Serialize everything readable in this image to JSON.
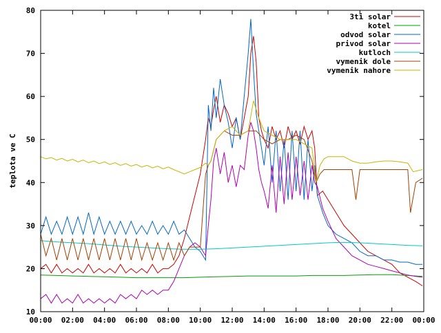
{
  "chart_data": {
    "type": "line",
    "title": "",
    "xlabel": "",
    "ylabel": "teplota ve C",
    "xlim": [
      "00:00",
      "24:00"
    ],
    "ylim": [
      10,
      80
    ],
    "x_ticks": [
      "00:00",
      "02:00",
      "04:00",
      "06:00",
      "08:00",
      "10:00",
      "12:00",
      "14:00",
      "16:00",
      "18:00",
      "20:00",
      "22:00",
      "00:00"
    ],
    "y_ticks": [
      10,
      20,
      30,
      40,
      50,
      60,
      70,
      80
    ],
    "grid": false,
    "legend_position": "top-right",
    "series": [
      {
        "name": "3ti solar",
        "color": "#cc0000",
        "x": [
          "00:00",
          "00:20",
          "00:40",
          "01:00",
          "01:20",
          "01:40",
          "02:00",
          "02:20",
          "02:40",
          "03:00",
          "03:20",
          "03:40",
          "04:00",
          "04:20",
          "04:40",
          "05:00",
          "05:20",
          "05:40",
          "06:00",
          "06:20",
          "06:40",
          "07:00",
          "07:20",
          "07:40",
          "08:00",
          "08:20",
          "08:40",
          "09:00",
          "09:20",
          "09:40",
          "10:00",
          "10:20",
          "10:30",
          "10:40",
          "10:50",
          "11:00",
          "11:15",
          "11:30",
          "11:45",
          "12:00",
          "12:15",
          "12:30",
          "12:45",
          "13:00",
          "13:10",
          "13:20",
          "13:30",
          "13:40",
          "13:50",
          "14:00",
          "14:15",
          "14:30",
          "14:45",
          "15:00",
          "15:15",
          "15:30",
          "15:45",
          "16:00",
          "16:15",
          "16:30",
          "16:45",
          "17:00",
          "17:10",
          "17:20",
          "17:40",
          "18:00",
          "18:30",
          "19:00",
          "19:30",
          "20:00",
          "20:30",
          "21:00",
          "21:30",
          "22:00",
          "22:30",
          "23:00",
          "23:30",
          "23:55"
        ],
        "values": [
          20,
          21,
          19,
          21,
          19,
          20,
          19,
          20,
          19,
          21,
          19,
          20,
          19,
          20,
          19,
          21,
          19,
          20,
          19,
          20,
          19,
          21,
          19,
          20,
          20,
          21,
          23,
          27,
          32,
          37,
          42,
          50,
          55,
          53,
          57,
          60,
          54,
          58,
          56,
          53,
          55,
          50,
          55,
          60,
          70,
          74,
          68,
          55,
          52,
          50,
          48,
          53,
          50,
          52,
          48,
          53,
          50,
          52,
          49,
          53,
          50,
          52,
          48,
          37,
          38,
          36,
          33,
          30,
          28,
          26,
          24,
          23,
          22,
          21,
          19,
          18,
          17,
          16
        ]
      },
      {
        "name": "kotel",
        "color": "#00a000",
        "x": [
          "00:00",
          "01:00",
          "02:00",
          "03:00",
          "04:00",
          "05:00",
          "06:00",
          "07:00",
          "08:00",
          "09:00",
          "10:00",
          "11:00",
          "12:00",
          "13:00",
          "14:00",
          "15:00",
          "16:00",
          "17:00",
          "18:00",
          "19:00",
          "20:00",
          "21:00",
          "22:00",
          "23:00",
          "23:55"
        ],
        "values": [
          18.5,
          18.4,
          18.3,
          18.2,
          18.1,
          18.0,
          17.9,
          17.9,
          17.9,
          17.9,
          18.0,
          18.1,
          18.2,
          18.3,
          18.3,
          18.3,
          18.3,
          18.4,
          18.4,
          18.4,
          18.5,
          18.6,
          18.6,
          18.4,
          18.2
        ]
      },
      {
        "name": "odvod solar",
        "color": "#0066cc",
        "x": [
          "00:00",
          "00:20",
          "00:40",
          "01:00",
          "01:20",
          "01:40",
          "02:00",
          "02:20",
          "02:40",
          "03:00",
          "03:20",
          "03:40",
          "04:00",
          "04:20",
          "04:40",
          "05:00",
          "05:20",
          "05:40",
          "06:00",
          "06:20",
          "06:40",
          "07:00",
          "07:20",
          "07:40",
          "08:00",
          "08:20",
          "08:40",
          "09:00",
          "09:20",
          "09:40",
          "10:00",
          "10:20",
          "10:30",
          "10:40",
          "10:50",
          "11:00",
          "11:15",
          "11:30",
          "11:45",
          "12:00",
          "12:15",
          "12:30",
          "12:45",
          "13:00",
          "13:10",
          "13:20",
          "13:30",
          "13:40",
          "13:50",
          "14:00",
          "14:15",
          "14:30",
          "14:45",
          "15:00",
          "15:15",
          "15:30",
          "15:45",
          "16:00",
          "16:15",
          "16:30",
          "16:45",
          "17:00",
          "17:10",
          "17:20",
          "17:40",
          "18:00",
          "18:30",
          "19:00",
          "19:30",
          "20:00",
          "20:30",
          "21:00",
          "21:30",
          "22:00",
          "22:30",
          "23:00",
          "23:30",
          "23:55"
        ],
        "values": [
          28,
          32,
          28,
          31,
          28,
          32,
          28,
          32,
          28,
          33,
          28,
          32,
          28,
          31,
          28,
          31,
          28,
          31,
          28,
          30,
          28,
          31,
          28,
          30,
          28,
          31,
          28,
          29,
          27,
          25,
          24,
          22,
          58,
          52,
          62,
          55,
          64,
          58,
          54,
          48,
          55,
          50,
          60,
          70,
          78,
          66,
          56,
          52,
          48,
          44,
          53,
          40,
          52,
          38,
          50,
          36,
          52,
          38,
          52,
          36,
          50,
          38,
          44,
          37,
          33,
          30,
          28,
          27,
          26,
          24,
          23,
          23,
          22,
          22,
          21.5,
          21.5,
          21,
          21
        ]
      },
      {
        "name": "privod solar",
        "color": "#b000b0",
        "x": [
          "00:00",
          "00:20",
          "00:40",
          "01:00",
          "01:20",
          "01:40",
          "02:00",
          "02:20",
          "02:40",
          "03:00",
          "03:20",
          "03:40",
          "04:00",
          "04:20",
          "04:40",
          "05:00",
          "05:20",
          "05:40",
          "06:00",
          "06:20",
          "06:40",
          "07:00",
          "07:20",
          "07:40",
          "08:00",
          "08:20",
          "08:40",
          "09:00",
          "09:20",
          "09:40",
          "10:00",
          "10:20",
          "10:30",
          "10:40",
          "10:50",
          "11:00",
          "11:15",
          "11:30",
          "11:45",
          "12:00",
          "12:15",
          "12:30",
          "12:45",
          "13:00",
          "13:10",
          "13:20",
          "13:30",
          "13:40",
          "13:50",
          "14:00",
          "14:15",
          "14:30",
          "14:45",
          "15:00",
          "15:15",
          "15:30",
          "15:45",
          "16:00",
          "16:15",
          "16:30",
          "16:45",
          "17:00",
          "17:10",
          "17:20",
          "17:40",
          "18:00",
          "18:30",
          "19:00",
          "19:30",
          "20:00",
          "20:30",
          "21:00",
          "21:30",
          "22:00",
          "22:30",
          "23:00",
          "23:30",
          "23:55"
        ],
        "values": [
          13,
          14,
          12,
          14,
          12,
          13,
          12,
          14,
          12,
          13,
          12,
          13,
          12,
          13,
          12,
          14,
          13,
          14,
          13,
          15,
          14,
          15,
          14,
          15,
          15,
          17,
          20,
          23,
          25,
          26,
          25,
          23,
          30,
          36,
          45,
          48,
          42,
          47,
          40,
          44,
          39,
          44,
          43,
          51,
          54,
          52,
          48,
          43,
          40,
          38,
          34,
          44,
          33,
          46,
          35,
          47,
          36,
          46,
          37,
          45,
          36,
          44,
          40,
          39,
          34,
          31,
          27,
          25,
          23,
          22,
          21,
          20.5,
          20,
          19.5,
          19,
          18.5,
          18.2,
          18
        ]
      },
      {
        "name": "kutloch",
        "color": "#00c8c8",
        "x": [
          "00:00",
          "01:00",
          "02:00",
          "03:00",
          "04:00",
          "05:00",
          "06:00",
          "07:00",
          "08:00",
          "09:00",
          "10:00",
          "11:00",
          "12:00",
          "13:00",
          "14:00",
          "15:00",
          "16:00",
          "17:00",
          "18:00",
          "19:00",
          "20:00",
          "21:00",
          "22:00",
          "23:00",
          "23:55"
        ],
        "values": [
          26.5,
          26.2,
          26.0,
          25.8,
          25.5,
          25.2,
          25.0,
          24.8,
          24.6,
          24.5,
          24.5,
          24.6,
          24.8,
          25.0,
          25.2,
          25.4,
          25.6,
          25.8,
          26.0,
          26.1,
          26.0,
          25.8,
          25.6,
          25.4,
          25.3
        ]
      },
      {
        "name": "vymenik dole",
        "color": "#a04000",
        "x": [
          "00:00",
          "00:20",
          "00:40",
          "01:00",
          "01:20",
          "01:40",
          "02:00",
          "02:20",
          "02:40",
          "03:00",
          "03:20",
          "03:40",
          "04:00",
          "04:20",
          "04:40",
          "05:00",
          "05:20",
          "05:40",
          "06:00",
          "06:20",
          "06:40",
          "07:00",
          "07:20",
          "07:40",
          "08:00",
          "08:20",
          "08:40",
          "09:00",
          "09:20",
          "09:40",
          "10:00",
          "10:20",
          "10:30",
          "10:40",
          "11:00",
          "11:30",
          "12:00",
          "12:30",
          "13:00",
          "13:30",
          "14:00",
          "14:30",
          "15:00",
          "15:30",
          "16:00",
          "16:30",
          "17:00",
          "17:15",
          "17:30",
          "17:45",
          "18:00",
          "18:30",
          "19:00",
          "19:30",
          "19:45",
          "20:00",
          "20:30",
          "21:00",
          "21:30",
          "22:00",
          "22:30",
          "23:00",
          "23:10",
          "23:30",
          "23:55"
        ],
        "values": [
          28,
          23,
          27,
          22,
          27,
          22,
          27,
          22,
          27,
          22,
          27,
          22,
          27,
          22,
          27,
          22,
          27,
          22,
          27,
          22,
          26,
          22,
          26,
          22,
          26,
          22,
          26,
          23,
          25,
          25,
          25,
          42,
          44,
          45,
          50,
          52,
          51,
          51,
          52,
          52,
          50,
          49,
          50,
          50,
          51,
          50,
          45,
          40,
          42,
          43,
          43,
          43,
          43,
          43,
          36,
          43,
          43,
          43,
          43,
          43,
          43,
          43,
          33,
          40,
          41
        ]
      },
      {
        "name": "vymenik nahore",
        "color": "#c8b400",
        "x": [
          "00:00",
          "00:20",
          "00:40",
          "01:00",
          "01:20",
          "01:40",
          "02:00",
          "02:20",
          "02:40",
          "03:00",
          "03:20",
          "03:40",
          "04:00",
          "04:20",
          "04:40",
          "05:00",
          "05:20",
          "05:40",
          "06:00",
          "06:20",
          "06:40",
          "07:00",
          "07:20",
          "07:40",
          "08:00",
          "08:20",
          "08:40",
          "09:00",
          "09:20",
          "09:40",
          "10:00",
          "10:20",
          "10:30",
          "10:40",
          "11:00",
          "11:30",
          "12:00",
          "12:30",
          "13:00",
          "13:20",
          "13:40",
          "14:00",
          "14:30",
          "15:00",
          "15:30",
          "16:00",
          "16:30",
          "17:00",
          "17:15",
          "17:30",
          "17:45",
          "18:00",
          "18:30",
          "19:00",
          "19:30",
          "20:00",
          "20:30",
          "21:00",
          "21:30",
          "22:00",
          "22:30",
          "23:00",
          "23:20",
          "23:55"
        ],
        "values": [
          46,
          45.5,
          45.8,
          45.2,
          45.6,
          45.0,
          45.4,
          44.8,
          45.2,
          44.6,
          45.0,
          44.4,
          44.8,
          44.2,
          44.6,
          44.0,
          44.4,
          43.8,
          44.2,
          43.6,
          44.0,
          43.4,
          43.8,
          43.2,
          43.6,
          43.0,
          42.5,
          42.0,
          42.5,
          43.0,
          43.5,
          44.5,
          44,
          45,
          50,
          52,
          53,
          51,
          52,
          59,
          55,
          52,
          51,
          50,
          50,
          50,
          49,
          48,
          40,
          44,
          45.5,
          46,
          46,
          46,
          45,
          44.5,
          44.5,
          44.8,
          45,
          45,
          44.8,
          44.5,
          42.5,
          43
        ]
      }
    ]
  }
}
